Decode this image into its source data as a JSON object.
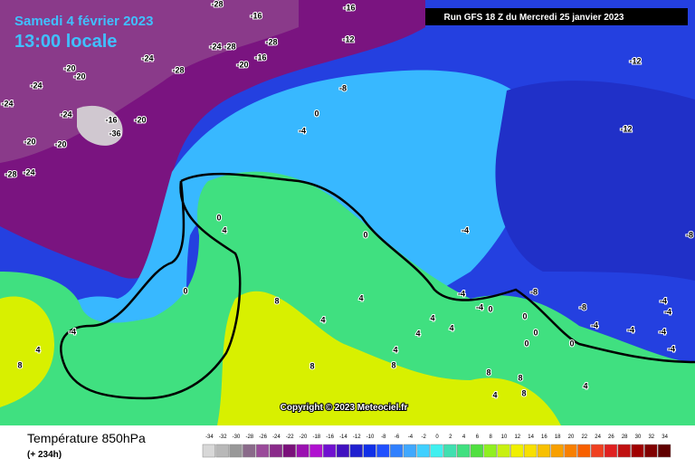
{
  "header": {
    "date": "Samedi 4 février 2023",
    "time": "13:00 locale",
    "run": "Run GFS 18 Z du Mercredi 25 janvier 2023"
  },
  "map": {
    "copyright": "Copyright © 2023 Meteociel.fr",
    "labels": [
      "-28",
      "-16",
      "-16",
      "-24",
      "-28",
      "-28",
      "-20",
      "-16",
      "-12",
      "-24",
      "-28",
      "-20",
      "-20",
      "-24",
      "-24",
      "-24",
      "-20",
      "-16",
      "-36",
      "-20",
      "-20",
      "-28",
      "-24",
      "-12",
      "-8",
      "0",
      "-4",
      "-12",
      "-4",
      "0",
      "-8",
      "0",
      "4",
      "0",
      "-4",
      "4",
      "8",
      "8",
      "4",
      "4",
      "-4",
      "-4",
      "0",
      "-8",
      "-8",
      "-4",
      "-4",
      "-4",
      "-4",
      "4",
      "4",
      "0",
      "0",
      "0",
      "4",
      "4",
      "8",
      "8",
      "8",
      "8",
      "4",
      "8",
      "4",
      "-4",
      "-4",
      "0"
    ]
  },
  "footer": {
    "title": "Température 850hPa",
    "lead": "(+ 234h)",
    "scale": {
      "values": [
        -34,
        -32,
        -30,
        -28,
        -26,
        -24,
        -22,
        -20,
        -18,
        -16,
        -14,
        -12,
        -10,
        -8,
        -6,
        -4,
        -2,
        0,
        2,
        4,
        6,
        8,
        10,
        12,
        14,
        16,
        18,
        20,
        22,
        24,
        26,
        28,
        30,
        32,
        34
      ],
      "colors": [
        "#d8d8d8",
        "#b8b8b8",
        "#989898",
        "#8a6a8a",
        "#9a4a9a",
        "#8a2a8a",
        "#7a107a",
        "#9a10b0",
        "#b010d0",
        "#7010d0",
        "#4010c0",
        "#2020d0",
        "#1030e8",
        "#2050ff",
        "#3080ff",
        "#40a8ff",
        "#40d0ff",
        "#40f0f0",
        "#40e0b0",
        "#40e080",
        "#50e040",
        "#90f020",
        "#c8f010",
        "#f0f000",
        "#f8e000",
        "#f8c000",
        "#f8a000",
        "#f88000",
        "#f86000",
        "#f04020",
        "#e02020",
        "#c01010",
        "#a00000",
        "#800000",
        "#600000"
      ]
    }
  }
}
